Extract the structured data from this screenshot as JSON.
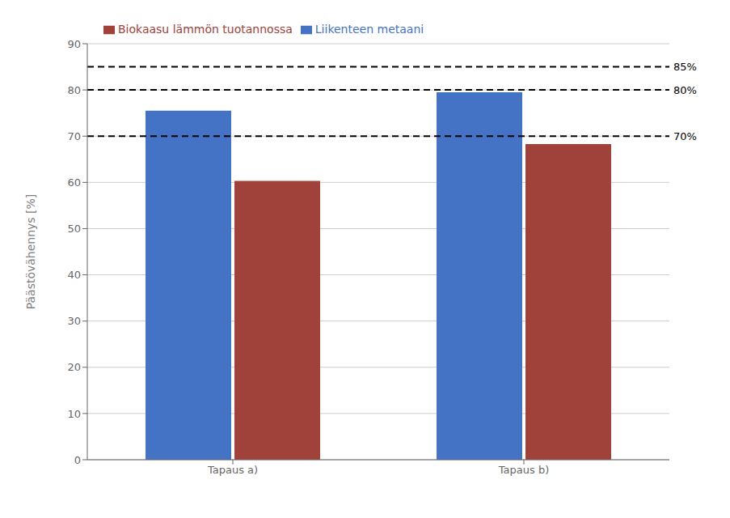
{
  "chart_data": {
    "type": "bar",
    "categories": [
      "Tapaus a)",
      "Tapaus b)"
    ],
    "series": [
      {
        "name": "Liikenteen metaani",
        "color": "#4472C4",
        "values": [
          75.5,
          79.5
        ]
      },
      {
        "name": "Biokaasu lämmön tuotannossa",
        "color": "#A0413A",
        "values": [
          60.3,
          68.3
        ]
      }
    ],
    "ylabel": "Päästövähennys [%]",
    "ylim": [
      0,
      90
    ],
    "yticks": [
      0,
      10,
      20,
      30,
      40,
      50,
      60,
      70,
      80,
      90
    ],
    "grid": true,
    "legend": "top",
    "hlines": [
      {
        "y": 85,
        "label": "85%",
        "color": "#000000",
        "line_style": "dashed"
      },
      {
        "y": 80,
        "label": "80%",
        "color": "#000000",
        "line_style": "dashed"
      },
      {
        "y": 70,
        "label": "70%",
        "color": "#000000",
        "line_style": "dashed"
      }
    ]
  }
}
